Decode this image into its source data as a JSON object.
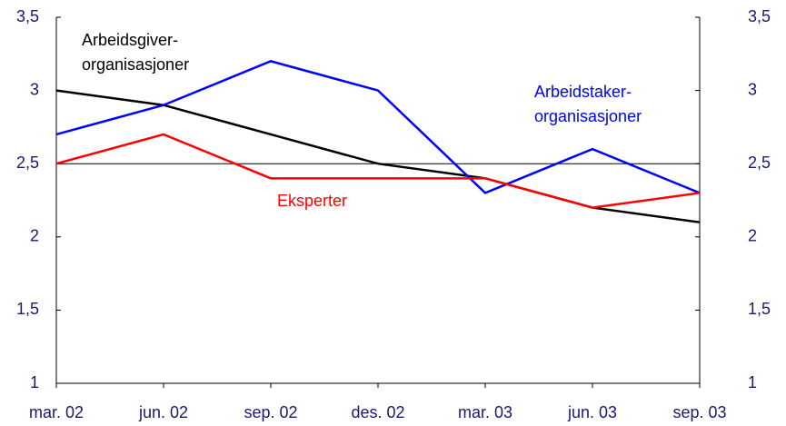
{
  "chart_data": {
    "type": "line",
    "categories": [
      "mar. 02",
      "jun. 02",
      "sep. 02",
      "des. 02",
      "mar. 03",
      "jun. 03",
      "sep. 03"
    ],
    "series": [
      {
        "name": "Arbeidsgiver-\norganisasjoner",
        "color": "#000000",
        "values": [
          3.0,
          2.9,
          2.7,
          2.5,
          2.4,
          2.2,
          2.1
        ]
      },
      {
        "name": "Arbeidstaker-\norganisasjoner",
        "color": "#0000ff",
        "values": [
          2.7,
          2.9,
          3.2,
          3.0,
          2.3,
          2.6,
          2.3
        ]
      },
      {
        "name": "Eksperter",
        "color": "#ff0000",
        "values": [
          2.5,
          2.7,
          2.4,
          2.4,
          2.4,
          2.2,
          2.3
        ]
      }
    ],
    "ylim": [
      1,
      3.5
    ],
    "yticks": [
      1,
      {
        "value": 1.5,
        "label": "1,5"
      },
      2,
      {
        "value": 2.5,
        "label": "2,5"
      },
      3,
      {
        "value": 3.5,
        "label": "3,5"
      }
    ],
    "y2lim": [
      1,
      3.5
    ],
    "y2ticks": [
      1,
      {
        "value": 1.5,
        "label": "1,5"
      },
      2,
      {
        "value": 2.5,
        "label": "2,5"
      },
      3,
      {
        "value": 3.5,
        "label": "3,5"
      }
    ],
    "reference_line": {
      "value": 2.5,
      "label": "2,5"
    }
  }
}
